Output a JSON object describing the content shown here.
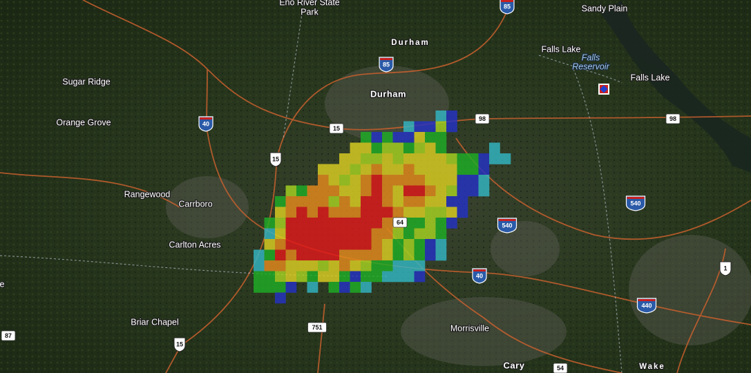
{
  "places": [
    {
      "label": "Eno River State"
    },
    {
      "label": "Park"
    },
    {
      "label": "Sandy Plain"
    },
    {
      "label": "Durham"
    },
    {
      "label": "Durham"
    },
    {
      "label": "Falls Lake"
    },
    {
      "label": "Falls"
    },
    {
      "label": "Reservoir"
    },
    {
      "label": "Falls Lake"
    },
    {
      "label": "Sugar Ridge"
    },
    {
      "label": "Orange Grove"
    },
    {
      "label": "Rangewood"
    },
    {
      "label": "Carrboro"
    },
    {
      "label": "Carlton Acres"
    },
    {
      "label": "Briar Chapel"
    },
    {
      "label": "Morrisville"
    },
    {
      "label": "Cary"
    },
    {
      "label": "Wake"
    },
    {
      "label": "e"
    }
  ],
  "shields": [
    {
      "label": "85"
    },
    {
      "label": "85"
    },
    {
      "label": "40"
    },
    {
      "label": "15"
    },
    {
      "label": "98"
    },
    {
      "label": "98"
    },
    {
      "label": "15"
    },
    {
      "label": "540"
    },
    {
      "label": "540"
    },
    {
      "label": "64"
    },
    {
      "label": "40"
    },
    {
      "label": "751"
    },
    {
      "label": "440"
    },
    {
      "label": "1"
    },
    {
      "label": "87"
    },
    {
      "label": "15"
    },
    {
      "label": "54"
    }
  ]
}
